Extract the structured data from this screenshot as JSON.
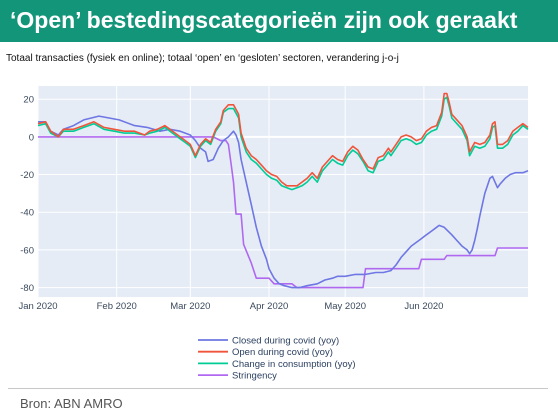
{
  "title": "‘Open’ bestedingscategorieën zijn ook geraakt",
  "subtitle": "Totaal transacties (fysiek en online); totaal ‘open’ en ‘gesloten’ sectoren, verandering j-o-j",
  "source": "Bron: ABN AMRO",
  "chart_data": {
    "type": "line",
    "x_tick_labels": [
      "Jan 2020",
      "Feb 2020",
      "Mar 2020",
      "Apr 2020",
      "May 2020",
      "Jun 2020"
    ],
    "x_tick_days": [
      0,
      31,
      60,
      91,
      121,
      152
    ],
    "x_range_days": [
      0,
      180
    ],
    "y_ticks": [
      20,
      0,
      -20,
      -40,
      -60,
      -80
    ],
    "ylim": [
      -85,
      27
    ],
    "grid": true,
    "legend_position": "bottom-center",
    "series": [
      {
        "name": "Closed during covid (yoy)",
        "color": "#6e77e3",
        "points": [
          [
            0,
            8
          ],
          [
            3,
            8
          ],
          [
            5,
            3
          ],
          [
            8,
            1
          ],
          [
            10,
            4
          ],
          [
            14,
            6
          ],
          [
            18,
            9
          ],
          [
            24,
            11
          ],
          [
            28,
            10
          ],
          [
            32,
            9
          ],
          [
            38,
            6
          ],
          [
            43,
            5
          ],
          [
            48,
            3
          ],
          [
            52,
            4
          ],
          [
            56,
            3
          ],
          [
            60,
            1
          ],
          [
            62,
            -2
          ],
          [
            64,
            -6
          ],
          [
            66,
            -8
          ],
          [
            67,
            -13
          ],
          [
            69,
            -12
          ],
          [
            71,
            -6
          ],
          [
            73,
            -2
          ],
          [
            75,
            0
          ],
          [
            77,
            3
          ],
          [
            78,
            1
          ],
          [
            79,
            -3
          ],
          [
            80,
            -12
          ],
          [
            82,
            -24
          ],
          [
            84,
            -36
          ],
          [
            86,
            -48
          ],
          [
            88,
            -58
          ],
          [
            90,
            -65
          ],
          [
            91,
            -70
          ],
          [
            93,
            -75
          ],
          [
            95,
            -78
          ],
          [
            97,
            -79
          ],
          [
            100,
            -80
          ],
          [
            103,
            -80
          ],
          [
            106,
            -79
          ],
          [
            110,
            -78
          ],
          [
            113,
            -76
          ],
          [
            116,
            -75
          ],
          [
            118,
            -74
          ],
          [
            121,
            -74
          ],
          [
            125,
            -73
          ],
          [
            129,
            -73
          ],
          [
            133,
            -72
          ],
          [
            136,
            -72
          ],
          [
            139,
            -71
          ],
          [
            141,
            -68
          ],
          [
            143,
            -64
          ],
          [
            145,
            -61
          ],
          [
            147,
            -58
          ],
          [
            149,
            -56
          ],
          [
            151,
            -54
          ],
          [
            153,
            -52
          ],
          [
            155,
            -50
          ],
          [
            157,
            -48
          ],
          [
            158,
            -47
          ],
          [
            160,
            -48
          ],
          [
            163,
            -52
          ],
          [
            165,
            -55
          ],
          [
            167,
            -58
          ],
          [
            169,
            -60
          ],
          [
            170,
            -62
          ],
          [
            171,
            -60
          ],
          [
            172,
            -55
          ],
          [
            173,
            -49
          ],
          [
            174,
            -42
          ],
          [
            175,
            -36
          ],
          [
            176,
            -30
          ],
          [
            177,
            -26
          ],
          [
            178,
            -22
          ],
          [
            179,
            -21
          ],
          [
            180,
            -24
          ],
          [
            181,
            -27
          ],
          [
            182,
            -25
          ],
          [
            184,
            -22
          ],
          [
            186,
            -20
          ],
          [
            188,
            -19
          ],
          [
            191,
            -19
          ],
          [
            193,
            -18
          ]
        ]
      },
      {
        "name": "Open during covid (yoy)",
        "color": "#ef553b",
        "points": [
          [
            0,
            7
          ],
          [
            3,
            8
          ],
          [
            5,
            3
          ],
          [
            8,
            0
          ],
          [
            10,
            4
          ],
          [
            14,
            4
          ],
          [
            18,
            6
          ],
          [
            22,
            8
          ],
          [
            26,
            5
          ],
          [
            30,
            4
          ],
          [
            34,
            3
          ],
          [
            38,
            3
          ],
          [
            42,
            1
          ],
          [
            44,
            3
          ],
          [
            47,
            4
          ],
          [
            50,
            6
          ],
          [
            52,
            4
          ],
          [
            54,
            2
          ],
          [
            56,
            0
          ],
          [
            58,
            -2
          ],
          [
            60,
            -4
          ],
          [
            62,
            -10
          ],
          [
            64,
            -4
          ],
          [
            66,
            -1
          ],
          [
            68,
            -3
          ],
          [
            70,
            4
          ],
          [
            72,
            8
          ],
          [
            73,
            14
          ],
          [
            75,
            17
          ],
          [
            77,
            17
          ],
          [
            79,
            12
          ],
          [
            80,
            2
          ],
          [
            82,
            -6
          ],
          [
            84,
            -10
          ],
          [
            86,
            -12
          ],
          [
            88,
            -15
          ],
          [
            90,
            -18
          ],
          [
            92,
            -20
          ],
          [
            94,
            -21
          ],
          [
            96,
            -24
          ],
          [
            98,
            -26
          ],
          [
            100,
            -26
          ],
          [
            102,
            -26
          ],
          [
            104,
            -24
          ],
          [
            106,
            -22
          ],
          [
            108,
            -19
          ],
          [
            110,
            -22
          ],
          [
            112,
            -16
          ],
          [
            114,
            -13
          ],
          [
            116,
            -10
          ],
          [
            118,
            -12
          ],
          [
            120,
            -13
          ],
          [
            122,
            -8
          ],
          [
            124,
            -5
          ],
          [
            126,
            -7
          ],
          [
            128,
            -12
          ],
          [
            130,
            -16
          ],
          [
            132,
            -17
          ],
          [
            134,
            -11
          ],
          [
            136,
            -10
          ],
          [
            138,
            -6
          ],
          [
            139,
            -8
          ],
          [
            141,
            -4
          ],
          [
            143,
            0
          ],
          [
            145,
            1
          ],
          [
            147,
            0
          ],
          [
            149,
            -2
          ],
          [
            151,
            -1
          ],
          [
            153,
            3
          ],
          [
            155,
            5
          ],
          [
            157,
            6
          ],
          [
            159,
            13
          ],
          [
            160,
            23
          ],
          [
            161,
            23
          ],
          [
            162,
            18
          ],
          [
            163,
            12
          ],
          [
            165,
            9
          ],
          [
            167,
            6
          ],
          [
            169,
            0
          ],
          [
            170,
            -8
          ],
          [
            172,
            -3
          ],
          [
            174,
            -4
          ],
          [
            176,
            -3
          ],
          [
            178,
            1
          ],
          [
            179,
            7
          ],
          [
            180,
            8
          ],
          [
            181,
            -4
          ],
          [
            183,
            -4
          ],
          [
            185,
            -2
          ],
          [
            187,
            3
          ],
          [
            189,
            5
          ],
          [
            191,
            7
          ],
          [
            193,
            5
          ]
        ]
      },
      {
        "name": "Change in consumption (yoy)",
        "color": "#00cc96",
        "points": [
          [
            0,
            6
          ],
          [
            3,
            7
          ],
          [
            5,
            2
          ],
          [
            8,
            0
          ],
          [
            10,
            3
          ],
          [
            14,
            3
          ],
          [
            18,
            5
          ],
          [
            22,
            7
          ],
          [
            26,
            4
          ],
          [
            30,
            3
          ],
          [
            34,
            2
          ],
          [
            38,
            2
          ],
          [
            42,
            1
          ],
          [
            44,
            2
          ],
          [
            47,
            3
          ],
          [
            50,
            5
          ],
          [
            52,
            3
          ],
          [
            54,
            1
          ],
          [
            56,
            -1
          ],
          [
            58,
            -3
          ],
          [
            60,
            -5
          ],
          [
            62,
            -11
          ],
          [
            64,
            -5
          ],
          [
            66,
            -2
          ],
          [
            68,
            -4
          ],
          [
            70,
            3
          ],
          [
            72,
            7
          ],
          [
            73,
            13
          ],
          [
            75,
            15
          ],
          [
            77,
            15
          ],
          [
            79,
            10
          ],
          [
            80,
            0
          ],
          [
            82,
            -8
          ],
          [
            84,
            -12
          ],
          [
            86,
            -14
          ],
          [
            88,
            -17
          ],
          [
            90,
            -20
          ],
          [
            92,
            -22
          ],
          [
            94,
            -23
          ],
          [
            96,
            -26
          ],
          [
            98,
            -27
          ],
          [
            100,
            -28
          ],
          [
            102,
            -27
          ],
          [
            104,
            -26
          ],
          [
            106,
            -24
          ],
          [
            108,
            -21
          ],
          [
            110,
            -24
          ],
          [
            112,
            -18
          ],
          [
            114,
            -15
          ],
          [
            116,
            -12
          ],
          [
            118,
            -14
          ],
          [
            120,
            -15
          ],
          [
            122,
            -10
          ],
          [
            124,
            -7
          ],
          [
            126,
            -9
          ],
          [
            128,
            -13
          ],
          [
            130,
            -18
          ],
          [
            132,
            -19
          ],
          [
            134,
            -13
          ],
          [
            136,
            -12
          ],
          [
            138,
            -8
          ],
          [
            139,
            -10
          ],
          [
            141,
            -6
          ],
          [
            143,
            -2
          ],
          [
            145,
            -1
          ],
          [
            147,
            -2
          ],
          [
            149,
            -4
          ],
          [
            151,
            -3
          ],
          [
            153,
            1
          ],
          [
            155,
            3
          ],
          [
            157,
            4
          ],
          [
            159,
            11
          ],
          [
            160,
            20
          ],
          [
            161,
            21
          ],
          [
            162,
            16
          ],
          [
            163,
            10
          ],
          [
            165,
            7
          ],
          [
            167,
            4
          ],
          [
            169,
            -2
          ],
          [
            170,
            -10
          ],
          [
            172,
            -5
          ],
          [
            174,
            -6
          ],
          [
            176,
            -5
          ],
          [
            178,
            -1
          ],
          [
            179,
            5
          ],
          [
            180,
            6
          ],
          [
            181,
            -6
          ],
          [
            183,
            -6
          ],
          [
            185,
            -4
          ],
          [
            187,
            1
          ],
          [
            189,
            3
          ],
          [
            191,
            6
          ],
          [
            193,
            4
          ]
        ]
      },
      {
        "name": "Stringency",
        "color": "#b068f0",
        "points": [
          [
            0,
            0
          ],
          [
            69,
            0
          ],
          [
            72,
            -2
          ],
          [
            74,
            -2
          ],
          [
            75,
            -4
          ],
          [
            76,
            -14
          ],
          [
            77,
            -24
          ],
          [
            78,
            -41
          ],
          [
            80,
            -41
          ],
          [
            81,
            -57
          ],
          [
            84,
            -67
          ],
          [
            86,
            -75
          ],
          [
            91,
            -75
          ],
          [
            93,
            -78
          ],
          [
            100,
            -78
          ],
          [
            102,
            -80
          ],
          [
            128,
            -80
          ],
          [
            129,
            -70
          ],
          [
            150,
            -70
          ],
          [
            151,
            -65
          ],
          [
            160,
            -65
          ],
          [
            161,
            -63
          ],
          [
            180,
            -63
          ],
          [
            181,
            -59
          ],
          [
            193,
            -59
          ]
        ]
      }
    ]
  }
}
